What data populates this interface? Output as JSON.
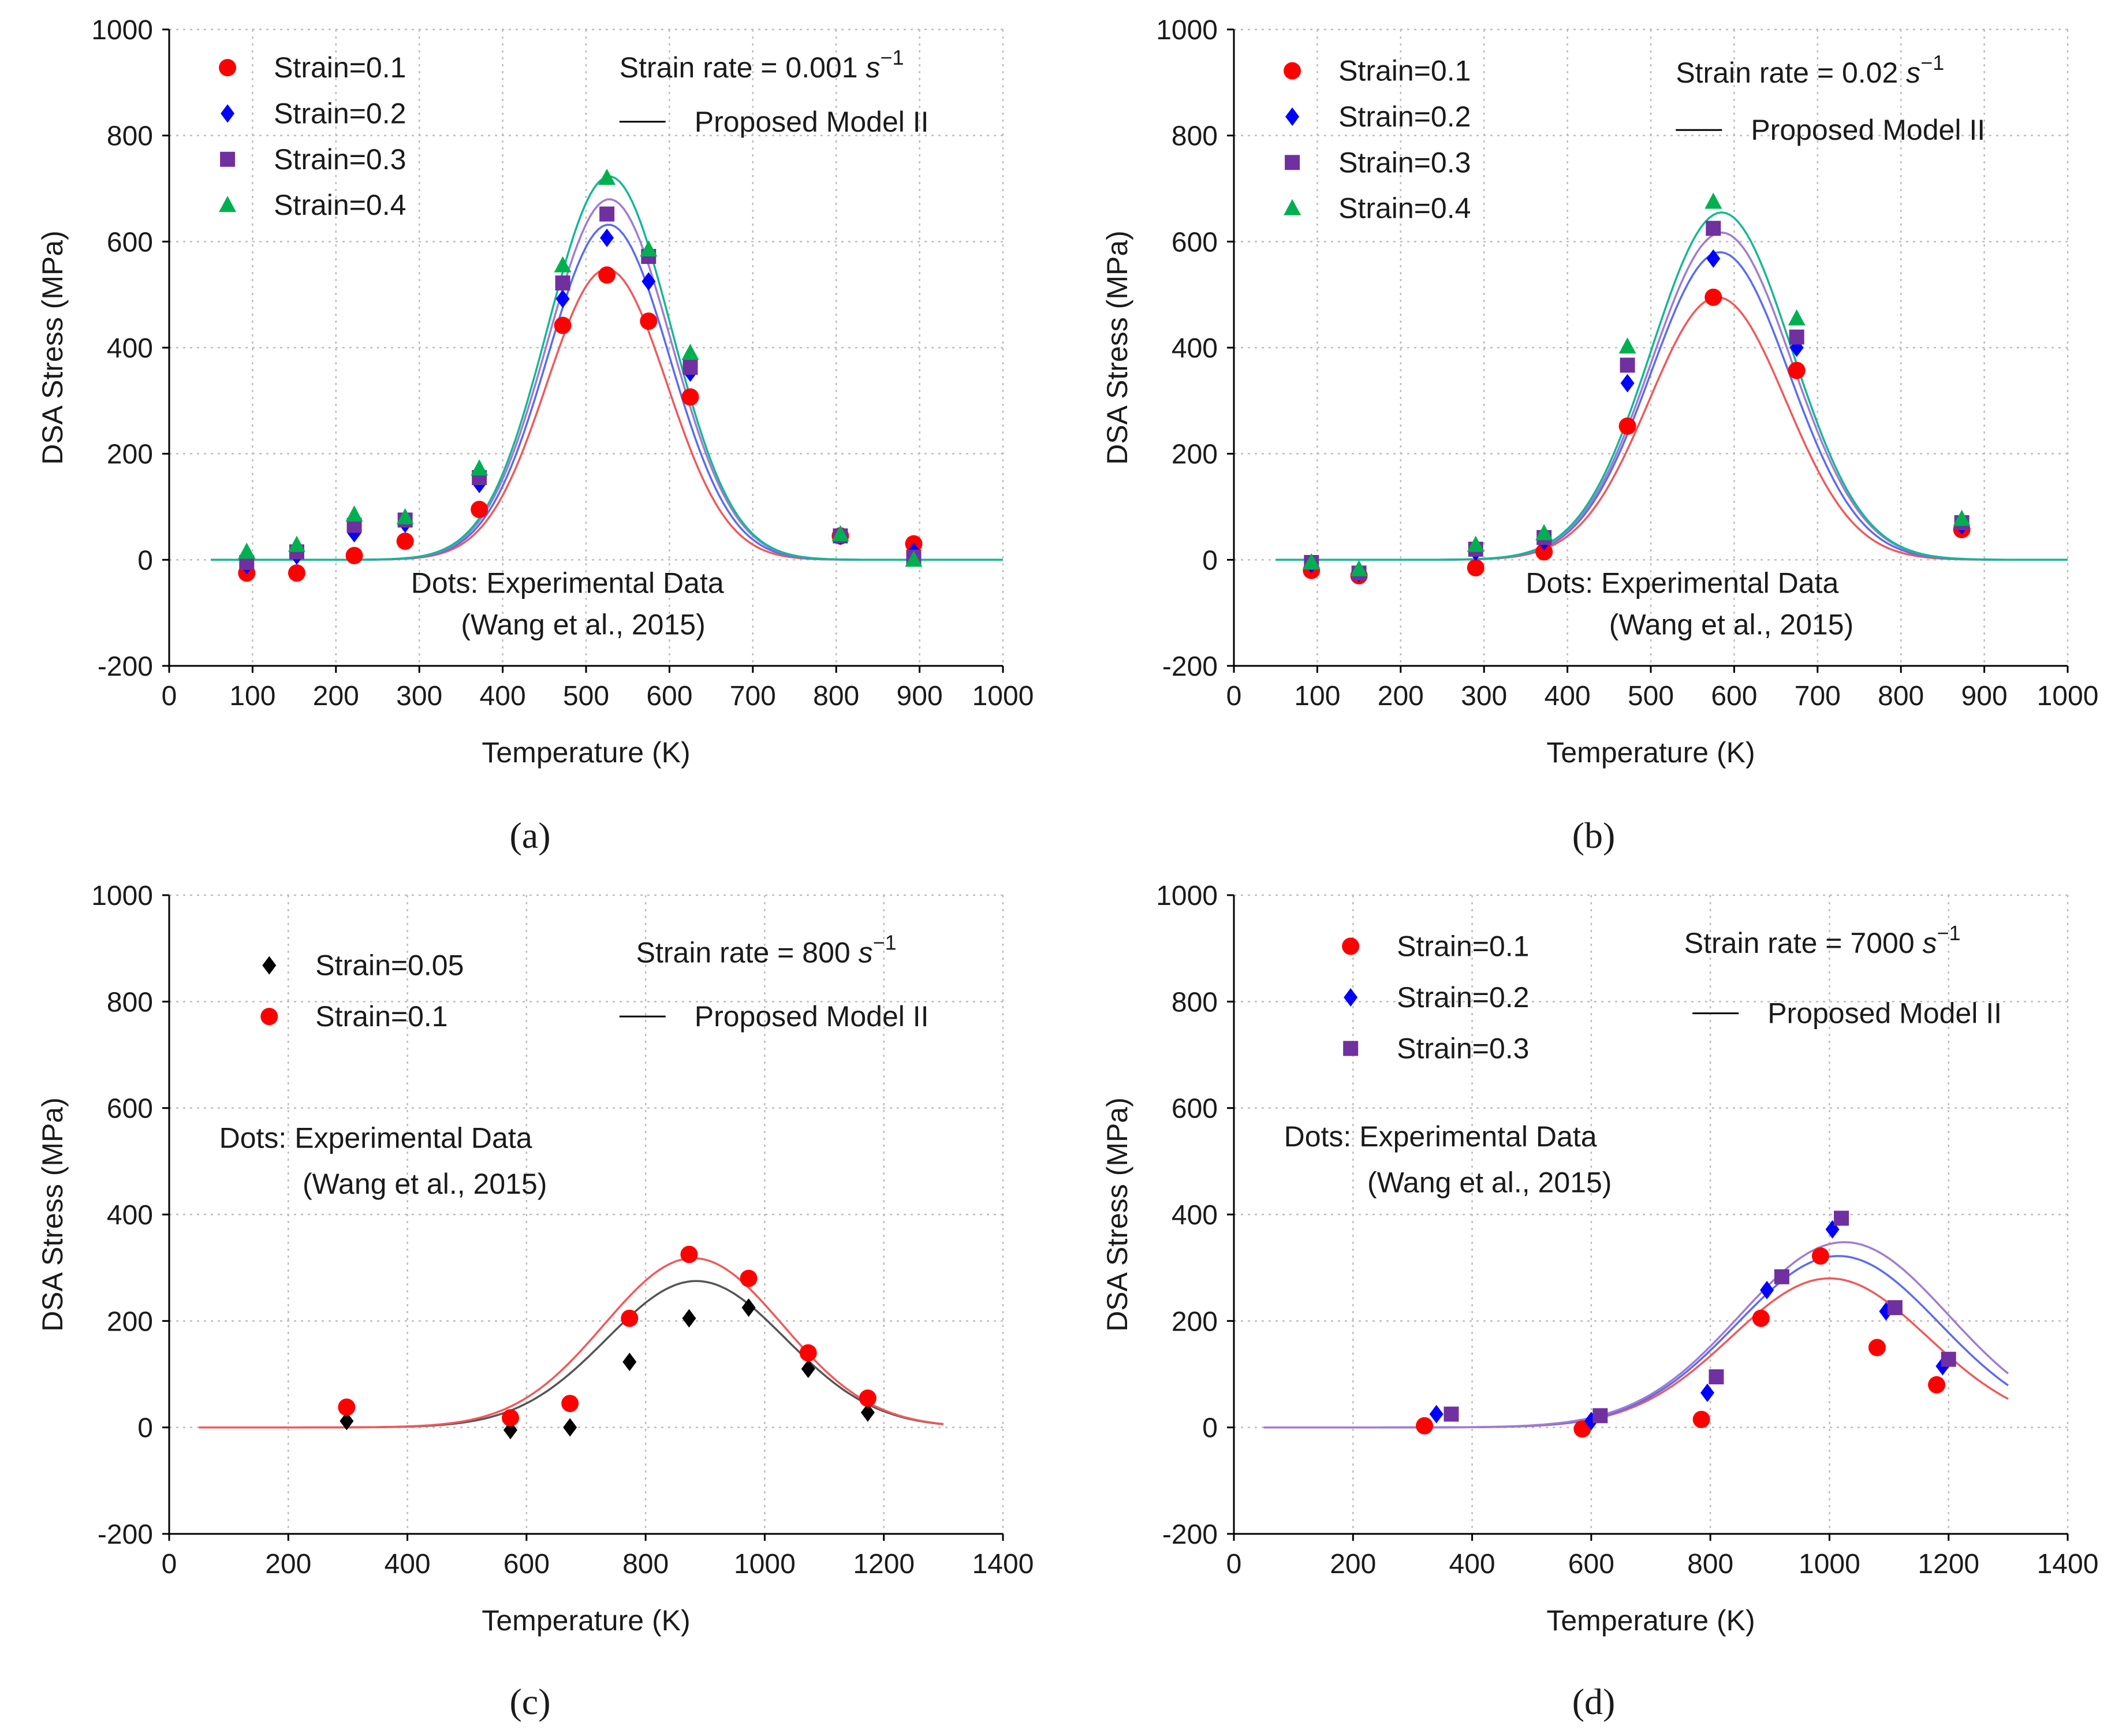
{
  "series_colors": {
    "s005": "#000000",
    "s01": "#ff0000",
    "s02": "#0000ff",
    "s03": "#7030a0",
    "s04": "#00b050"
  },
  "curve_colors": {
    "s005": "#555555",
    "s01": "#f0595a",
    "s02": "#5b6cf0",
    "s03": "#a07cd0",
    "s04": "#13b894",
    "model": "#000000"
  },
  "chart_data": [
    {
      "id": "a",
      "type": "scatter",
      "caption": "(a)",
      "xlabel": "Temperature (K)",
      "ylabel": "DSA Stress (MPa)",
      "xlim": [
        0,
        1000
      ],
      "ylim": [
        -200,
        1000
      ],
      "xticks": [
        0,
        100,
        200,
        300,
        400,
        500,
        600,
        700,
        800,
        900,
        1000
      ],
      "yticks": [
        -200,
        0,
        200,
        400,
        600,
        800,
        1000
      ],
      "rate_text": "Strain rate = 0.001",
      "rate_unit": "s",
      "rate_exp": "−1",
      "model_label": "Proposed Model II",
      "note_line1": "Dots: Experimental  Data",
      "note_line2": "(Wang et al., 2015)",
      "series": [
        {
          "name": "Strain=0.1",
          "key": "s01",
          "marker": "circle",
          "x": [
            93,
            153,
            222,
            283,
            372,
            472,
            525,
            575,
            625,
            805,
            893
          ],
          "y": [
            -25,
            -25,
            8,
            35,
            95,
            442,
            537,
            450,
            307,
            45,
            30
          ]
        },
        {
          "name": "Strain=0.2",
          "key": "s02",
          "marker": "diamond",
          "x": [
            93,
            153,
            222,
            283,
            372,
            472,
            525,
            575,
            625,
            805,
            893
          ],
          "y": [
            -10,
            8,
            50,
            68,
            143,
            492,
            607,
            525,
            353,
            45,
            15
          ]
        },
        {
          "name": "Strain=0.3",
          "key": "s03",
          "marker": "square",
          "x": [
            93,
            153,
            222,
            283,
            372,
            472,
            525,
            575,
            625,
            805,
            893
          ],
          "y": [
            -5,
            15,
            65,
            75,
            155,
            522,
            652,
            572,
            363,
            45,
            5
          ]
        },
        {
          "name": "Strain=0.4",
          "key": "s04",
          "marker": "triangle",
          "x": [
            93,
            153,
            222,
            283,
            372,
            472,
            525,
            575,
            625,
            805,
            893
          ],
          "y": [
            15,
            28,
            85,
            80,
            172,
            555,
            720,
            585,
            390,
            48,
            0
          ]
        }
      ],
      "curves": [
        {
          "key": "s01",
          "peak": 548,
          "center": 525,
          "sigma": 72,
          "xmin": 50,
          "xmax": 1000
        },
        {
          "key": "s02",
          "peak": 632,
          "center": 527,
          "sigma": 73,
          "xmin": 50,
          "xmax": 1000
        },
        {
          "key": "s03",
          "peak": 680,
          "center": 528,
          "sigma": 74,
          "xmin": 50,
          "xmax": 1000
        },
        {
          "key": "s04",
          "peak": 723,
          "center": 528,
          "sigma": 74,
          "xmin": 50,
          "xmax": 1000
        }
      ]
    },
    {
      "id": "b",
      "type": "scatter",
      "caption": "(b)",
      "xlabel": "Temperature (K)",
      "ylabel": "DSA Stress (MPa)",
      "xlim": [
        0,
        1000
      ],
      "ylim": [
        -200,
        1000
      ],
      "xticks": [
        0,
        100,
        200,
        300,
        400,
        500,
        600,
        700,
        800,
        900,
        1000
      ],
      "yticks": [
        -200,
        0,
        200,
        400,
        600,
        800,
        1000
      ],
      "rate_text": "Strain rate = 0.02",
      "rate_unit": "s",
      "rate_exp": "−1",
      "model_label": "Proposed Model II",
      "note_line1": "Dots: Experimental  Data",
      "note_line2": "(Wang et al., 2015)",
      "series": [
        {
          "name": "Strain=0.1",
          "key": "s01",
          "marker": "circle",
          "x": [
            93,
            150,
            290,
            372,
            472,
            575,
            675,
            873
          ],
          "y": [
            -20,
            -30,
            -15,
            15,
            252,
            495,
            357,
            57
          ]
        },
        {
          "name": "Strain=0.2",
          "key": "s02",
          "marker": "diamond",
          "x": [
            93,
            150,
            290,
            372,
            472,
            575,
            675,
            873
          ],
          "y": [
            -8,
            -25,
            15,
            35,
            333,
            568,
            400,
            65
          ]
        },
        {
          "name": "Strain=0.3",
          "key": "s03",
          "marker": "square",
          "x": [
            93,
            150,
            290,
            372,
            472,
            575,
            675,
            873
          ],
          "y": [
            -5,
            -25,
            20,
            42,
            367,
            625,
            420,
            70
          ]
        },
        {
          "name": "Strain=0.4",
          "key": "s04",
          "marker": "triangle",
          "x": [
            93,
            150,
            290,
            372,
            472,
            575,
            675,
            873
          ],
          "y": [
            -5,
            -18,
            28,
            50,
            402,
            675,
            455,
            77
          ]
        }
      ],
      "curves": [
        {
          "key": "s01",
          "peak": 495,
          "center": 580,
          "sigma": 82,
          "xmin": 50,
          "xmax": 1000
        },
        {
          "key": "s02",
          "peak": 580,
          "center": 583,
          "sigma": 83,
          "xmin": 50,
          "xmax": 1000
        },
        {
          "key": "s03",
          "peak": 617,
          "center": 585,
          "sigma": 84,
          "xmin": 50,
          "xmax": 1000
        },
        {
          "key": "s04",
          "peak": 655,
          "center": 585,
          "sigma": 84,
          "xmin": 50,
          "xmax": 1000
        }
      ]
    },
    {
      "id": "c",
      "type": "scatter",
      "caption": "(c)",
      "xlabel": "Temperature (K)",
      "ylabel": "DSA Stress (MPa)",
      "xlim": [
        0,
        1400
      ],
      "ylim": [
        -200,
        1000
      ],
      "xticks": [
        0,
        200,
        400,
        600,
        800,
        1000,
        1200,
        1400
      ],
      "yticks": [
        -200,
        0,
        200,
        400,
        600,
        800,
        1000
      ],
      "rate_text": "Strain rate = 800",
      "rate_unit": "s",
      "rate_exp": "−1",
      "model_label": "Proposed Model II",
      "note_line1": "Dots: Experimental  Data",
      "note_line2": "(Wang et al., 2015)",
      "series": [
        {
          "name": "Strain=0.05",
          "key": "s005",
          "marker": "diamond",
          "x": [
            298,
            573,
            673,
            773,
            873,
            973,
            1073,
            1173
          ],
          "y": [
            12,
            -5,
            0,
            123,
            205,
            225,
            110,
            28
          ]
        },
        {
          "name": "Strain=0.1",
          "key": "s01",
          "marker": "circle",
          "x": [
            298,
            573,
            673,
            773,
            873,
            973,
            1073,
            1173
          ],
          "y": [
            38,
            18,
            45,
            205,
            325,
            280,
            140,
            55
          ]
        }
      ],
      "curves": [
        {
          "key": "s005",
          "peak": 275,
          "center": 885,
          "sigma": 150,
          "xmin": 50,
          "xmax": 1300
        },
        {
          "key": "s01",
          "peak": 318,
          "center": 880,
          "sigma": 150,
          "xmin": 50,
          "xmax": 1300
        }
      ]
    },
    {
      "id": "d",
      "type": "scatter",
      "caption": "(d)",
      "xlabel": "Temperature (K)",
      "ylabel": "DSA Stress (MPa)",
      "xlim": [
        0,
        1400
      ],
      "ylim": [
        -200,
        1000
      ],
      "xticks": [
        0,
        200,
        400,
        600,
        800,
        1000,
        1200,
        1400
      ],
      "yticks": [
        -200,
        0,
        200,
        400,
        600,
        800,
        1000
      ],
      "rate_text": "Strain rate = 7000",
      "rate_unit": "s",
      "rate_exp": "−1",
      "model_label": "Proposed Model II",
      "note_line1": "Dots: Experimental  Data",
      "note_line2": "(Wang et al., 2015)",
      "series": [
        {
          "name": "Strain=0.1",
          "key": "s01",
          "marker": "circle",
          "x": [
            320,
            585,
            785,
            885,
            985,
            1080,
            1180
          ],
          "y": [
            3,
            -3,
            15,
            205,
            322,
            150,
            80
          ]
        },
        {
          "name": "Strain=0.2",
          "key": "s02",
          "marker": "diamond",
          "x": [
            340,
            600,
            795,
            895,
            1005,
            1095,
            1190
          ],
          "y": [
            25,
            12,
            65,
            258,
            372,
            218,
            115
          ]
        },
        {
          "name": "Strain=0.3",
          "key": "s03",
          "marker": "square",
          "x": [
            365,
            615,
            810,
            920,
            1020,
            1110,
            1200
          ],
          "y": [
            25,
            22,
            95,
            283,
            393,
            225,
            128
          ]
        }
      ],
      "curves": [
        {
          "key": "s01",
          "peak": 280,
          "center": 1000,
          "sigma": 165,
          "xmin": 50,
          "xmax": 1300
        },
        {
          "key": "s02",
          "peak": 322,
          "center": 1015,
          "sigma": 170,
          "xmin": 50,
          "xmax": 1300
        },
        {
          "key": "s03",
          "peak": 348,
          "center": 1025,
          "sigma": 175,
          "xmin": 50,
          "xmax": 1300
        }
      ]
    }
  ]
}
